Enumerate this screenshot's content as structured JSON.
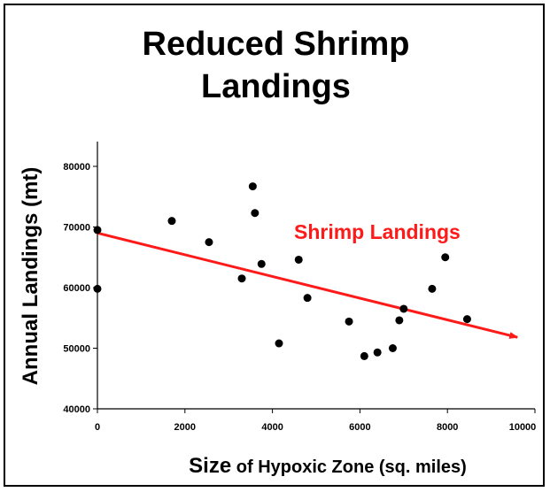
{
  "chart_data": {
    "type": "scatter",
    "title_lines": [
      "Reduced Shrimp",
      "Landings"
    ],
    "xlabel_bold": "Size",
    "xlabel_rest": " of Hypoxic Zone (sq. miles)",
    "ylabel": "Annual Landings (mt)",
    "xlim": [
      0,
      10000
    ],
    "ylim": [
      40000,
      80000
    ],
    "x_ticks": [
      0,
      2000,
      4000,
      6000,
      8000,
      10000
    ],
    "x_tick_labels": [
      "0",
      "2000",
      "4000",
      "6000",
      "8000",
      "10000"
    ],
    "y_ticks": [
      40000,
      50000,
      60000,
      70000,
      80000
    ],
    "y_tick_labels": [
      "40000",
      "50000",
      "60000",
      "70000",
      "80000"
    ],
    "grid": false,
    "points": [
      {
        "x": 0,
        "y": 69500
      },
      {
        "x": 0,
        "y": 59800
      },
      {
        "x": 1700,
        "y": 71000
      },
      {
        "x": 2550,
        "y": 67500
      },
      {
        "x": 3300,
        "y": 61500
      },
      {
        "x": 3550,
        "y": 76700
      },
      {
        "x": 3600,
        "y": 72300
      },
      {
        "x": 3750,
        "y": 63900
      },
      {
        "x": 4150,
        "y": 50800
      },
      {
        "x": 4600,
        "y": 64600
      },
      {
        "x": 4800,
        "y": 58300
      },
      {
        "x": 5750,
        "y": 54400
      },
      {
        "x": 6100,
        "y": 48700
      },
      {
        "x": 6400,
        "y": 49300
      },
      {
        "x": 6750,
        "y": 50000
      },
      {
        "x": 6900,
        "y": 54600
      },
      {
        "x": 7000,
        "y": 56500
      },
      {
        "x": 7650,
        "y": 59800
      },
      {
        "x": 7950,
        "y": 65000
      },
      {
        "x": 8450,
        "y": 54800
      }
    ],
    "trend_line": {
      "name": "Shrimp Landings",
      "x": [
        0,
        9600
      ],
      "y": [
        69000,
        51800
      ],
      "color": "#ff1a1a",
      "arrow": true
    },
    "annotation": "Shrimp Landings",
    "point_color": "#000000",
    "frame_color": "#000000"
  }
}
